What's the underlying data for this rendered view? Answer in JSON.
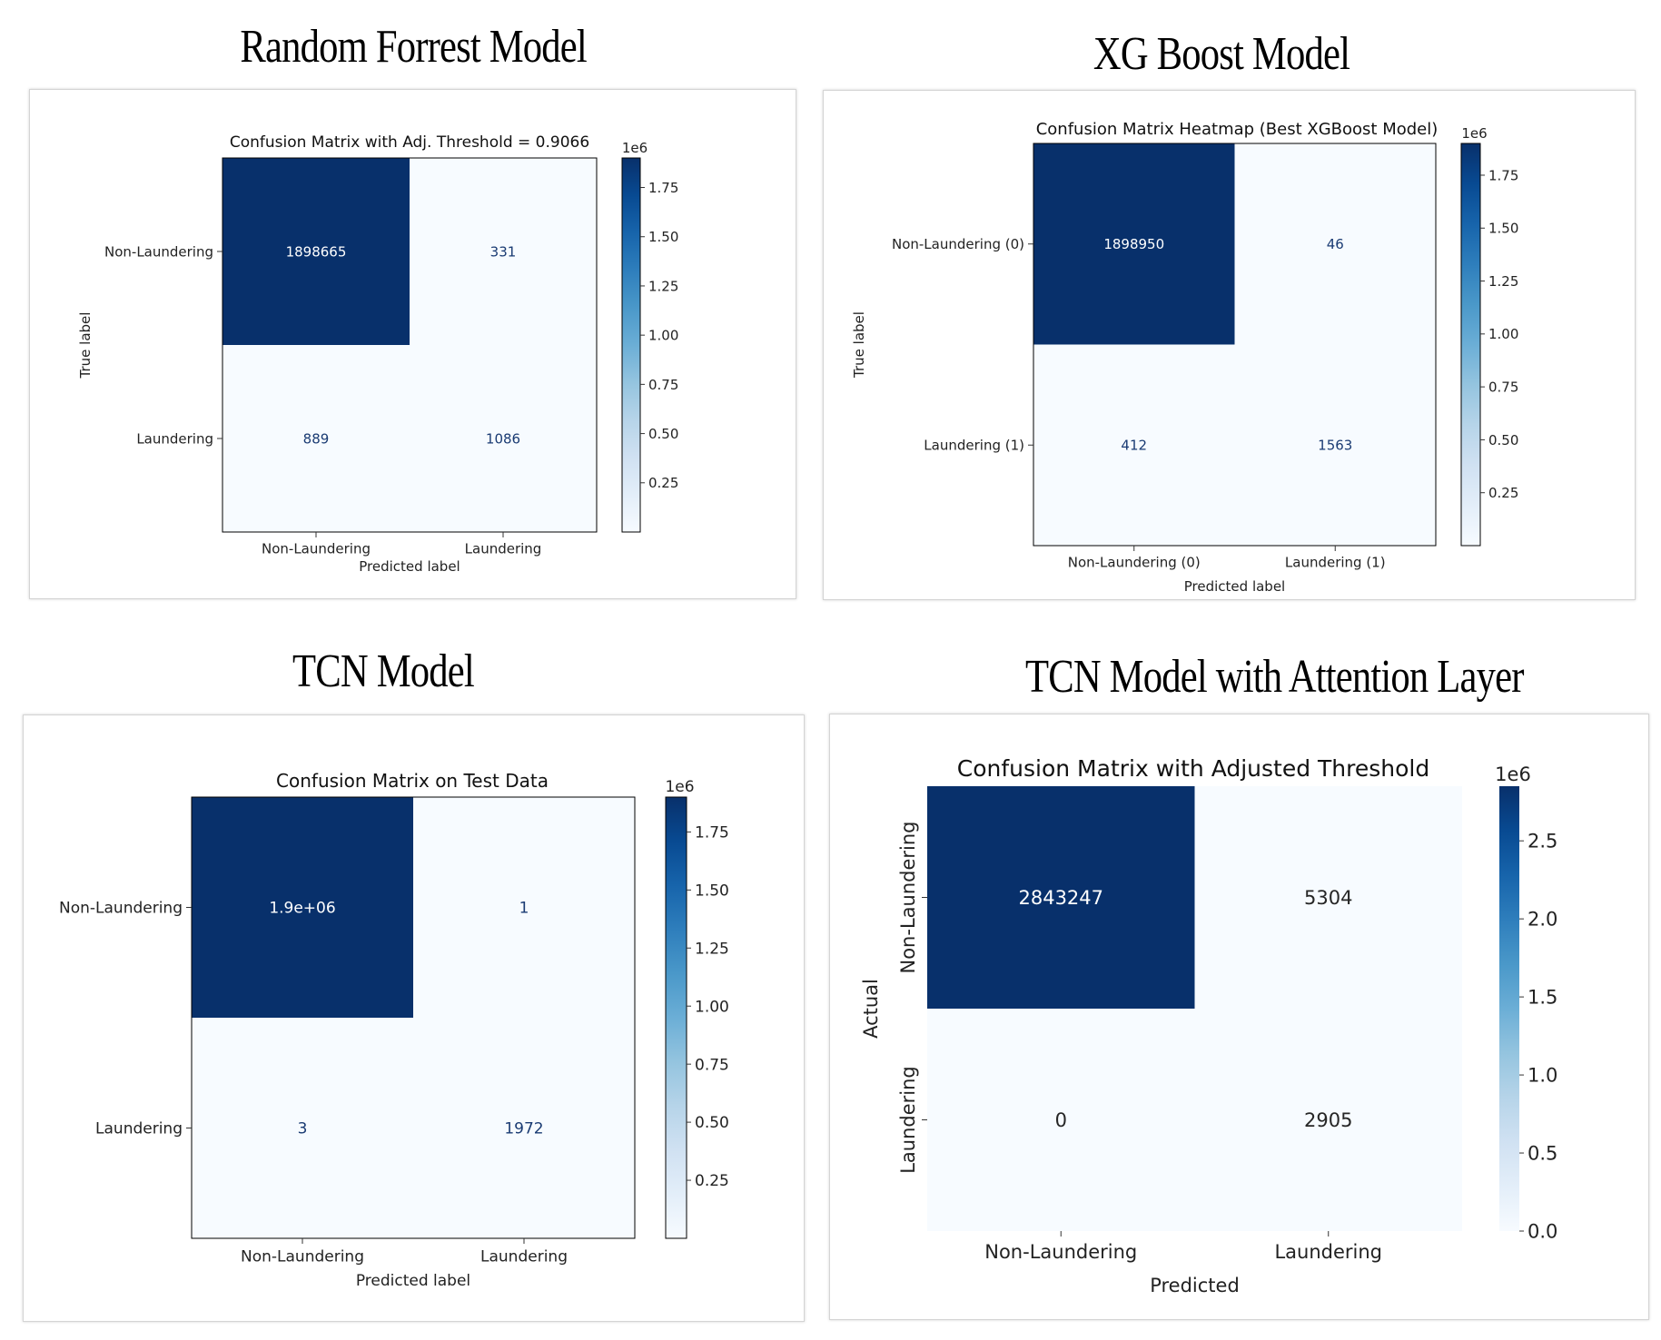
{
  "model_titles": [
    "Random Forrest Model",
    "XG Boost Model",
    "TCN Model",
    "TCN Model with Attention Layer"
  ],
  "chart_data": [
    {
      "type": "heatmap",
      "title": "Confusion Matrix with Adj. Threshold = 0.9066",
      "xlabel": "Predicted label",
      "ylabel": "True label",
      "x_categories": [
        "Non-Laundering",
        "Laundering"
      ],
      "y_categories": [
        "Non-Laundering",
        "Laundering"
      ],
      "values": [
        [
          1898665,
          331
        ],
        [
          889,
          1086
        ]
      ],
      "cell_labels": [
        [
          "1898665",
          "331"
        ],
        [
          "889",
          "1086"
        ]
      ],
      "colormap": "Blues",
      "colorbar": {
        "ticks": [
          "0.25",
          "0.50",
          "0.75",
          "1.00",
          "1.25",
          "1.50",
          "1.75"
        ],
        "tick_values": [
          0.25,
          0.5,
          0.75,
          1.0,
          1.25,
          1.5,
          1.75
        ],
        "range": [
          0,
          1.9
        ],
        "offset_label": "1e6"
      }
    },
    {
      "type": "heatmap",
      "title": "Confusion Matrix Heatmap (Best XGBoost Model)",
      "xlabel": "Predicted label",
      "ylabel": "True label",
      "x_categories": [
        "Non-Laundering (0)",
        "Laundering (1)"
      ],
      "y_categories": [
        "Non-Laundering (0)",
        "Laundering (1)"
      ],
      "values": [
        [
          1898950,
          46
        ],
        [
          412,
          1563
        ]
      ],
      "cell_labels": [
        [
          "1898950",
          "46"
        ],
        [
          "412",
          "1563"
        ]
      ],
      "colormap": "Blues",
      "colorbar": {
        "ticks": [
          "0.25",
          "0.50",
          "0.75",
          "1.00",
          "1.25",
          "1.50",
          "1.75"
        ],
        "tick_values": [
          0.25,
          0.5,
          0.75,
          1.0,
          1.25,
          1.5,
          1.75
        ],
        "range": [
          0,
          1.9
        ],
        "offset_label": "1e6"
      }
    },
    {
      "type": "heatmap",
      "title": "Confusion Matrix on Test Data",
      "xlabel": "Predicted label",
      "ylabel": "",
      "x_categories": [
        "Non-Laundering",
        "Laundering"
      ],
      "y_categories": [
        "Non-Laundering",
        "Laundering"
      ],
      "values": [
        [
          1900000,
          1
        ],
        [
          3,
          1972
        ]
      ],
      "cell_labels": [
        [
          "1.9e+06",
          "1"
        ],
        [
          "3",
          "1972"
        ]
      ],
      "colormap": "Blues",
      "colorbar": {
        "ticks": [
          "0.25",
          "0.50",
          "0.75",
          "1.00",
          "1.25",
          "1.50",
          "1.75"
        ],
        "tick_values": [
          0.25,
          0.5,
          0.75,
          1.0,
          1.25,
          1.5,
          1.75
        ],
        "range": [
          0,
          1.9
        ],
        "offset_label": "1e6"
      }
    },
    {
      "type": "heatmap",
      "title": "Confusion Matrix with Adjusted Threshold",
      "xlabel": "Predicted",
      "ylabel": "Actual",
      "x_categories": [
        "Non-Laundering",
        "Laundering"
      ],
      "y_categories": [
        "Non-Laundering",
        "Laundering"
      ],
      "values": [
        [
          2843247,
          5304
        ],
        [
          0,
          2905
        ]
      ],
      "cell_labels": [
        [
          "2843247",
          "5304"
        ],
        [
          "0",
          "2905"
        ]
      ],
      "colormap": "Blues",
      "colorbar": {
        "ticks": [
          "0.0",
          "0.5",
          "1.0",
          "1.5",
          "2.0",
          "2.5"
        ],
        "tick_values": [
          0,
          0.5,
          1.0,
          1.5,
          2.0,
          2.5
        ],
        "range": [
          0,
          2.85
        ],
        "offset_label": "1e6"
      }
    }
  ]
}
